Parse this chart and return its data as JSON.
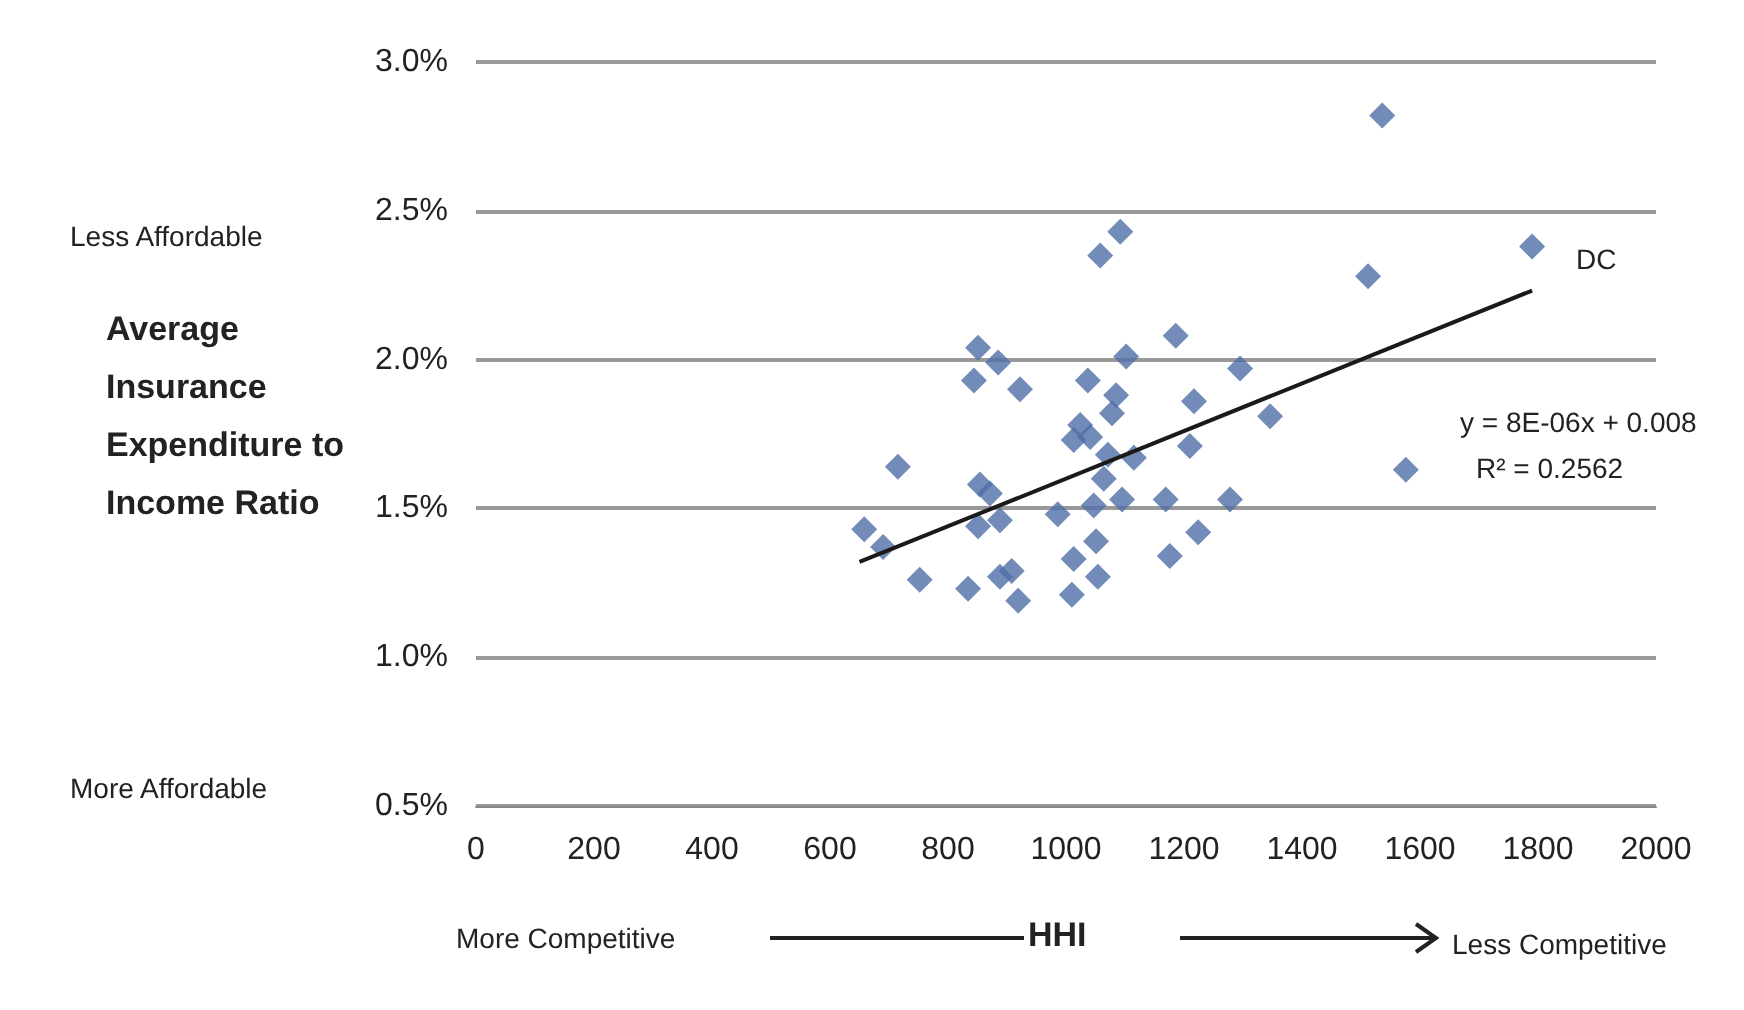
{
  "chart_data": {
    "type": "scatter",
    "xlabel": "HHI",
    "ylabel": "Average Insurance Expenditure to Income Ratio",
    "xlim": [
      0,
      2000
    ],
    "xticks": [
      0,
      200,
      400,
      600,
      800,
      1000,
      1200,
      1400,
      1600,
      1800,
      2000
    ],
    "ylim": [
      0.5,
      3.0
    ],
    "yticks": [
      {
        "value": 0.5,
        "label": "0.5%"
      },
      {
        "value": 1.0,
        "label": "1.0%"
      },
      {
        "value": 1.5,
        "label": "1.5%"
      },
      {
        "value": 2.0,
        "label": "2.0%"
      },
      {
        "value": 2.5,
        "label": "2.5%"
      },
      {
        "value": 3.0,
        "label": "3.0%"
      }
    ],
    "grid": "y",
    "marker": "diamond",
    "series": [
      {
        "color": "#4f6ea6",
        "x": [
          658,
          690,
          715,
          752,
          834,
          851,
          885,
          844,
          922,
          854,
          871,
          851,
          888,
          888,
          908,
          919,
          986,
          1013,
          1010,
          1051,
          1054,
          1047,
          1064,
          1037,
          1058,
          1092,
          1102,
          1085,
          1078,
          1024,
          1013,
          1041,
          1071,
          1115,
          1095,
          1169,
          1176,
          1224,
          1210,
          1217,
          1186,
          1278,
          1295,
          1346,
          1536,
          1512,
          1790,
          1576
        ],
        "values": [
          1.43,
          1.37,
          1.64,
          1.26,
          1.23,
          2.04,
          1.99,
          1.93,
          1.9,
          1.58,
          1.55,
          1.44,
          1.46,
          1.27,
          1.29,
          1.19,
          1.48,
          1.33,
          1.21,
          1.39,
          1.27,
          1.51,
          1.6,
          1.93,
          2.35,
          2.43,
          2.01,
          1.88,
          1.82,
          1.78,
          1.73,
          1.74,
          1.68,
          1.67,
          1.53,
          1.53,
          1.34,
          1.42,
          1.71,
          1.86,
          2.08,
          1.53,
          1.97,
          1.81,
          2.82,
          2.28,
          2.38,
          1.63
        ]
      },
      {
        "type": "line",
        "color": "#1a1a1a",
        "marker": "none",
        "line_style": "solid",
        "x": [
          650,
          1790
        ],
        "values": [
          1.32,
          2.232
        ]
      }
    ],
    "annotations": [
      "Less Affordable",
      "More Affordable",
      "More Competitive",
      "Less Competitive",
      {
        "text": "DC",
        "x": 1790,
        "y": 2.38
      },
      "y = 8E-06x + 0.008",
      "R² = 0.2562"
    ]
  }
}
